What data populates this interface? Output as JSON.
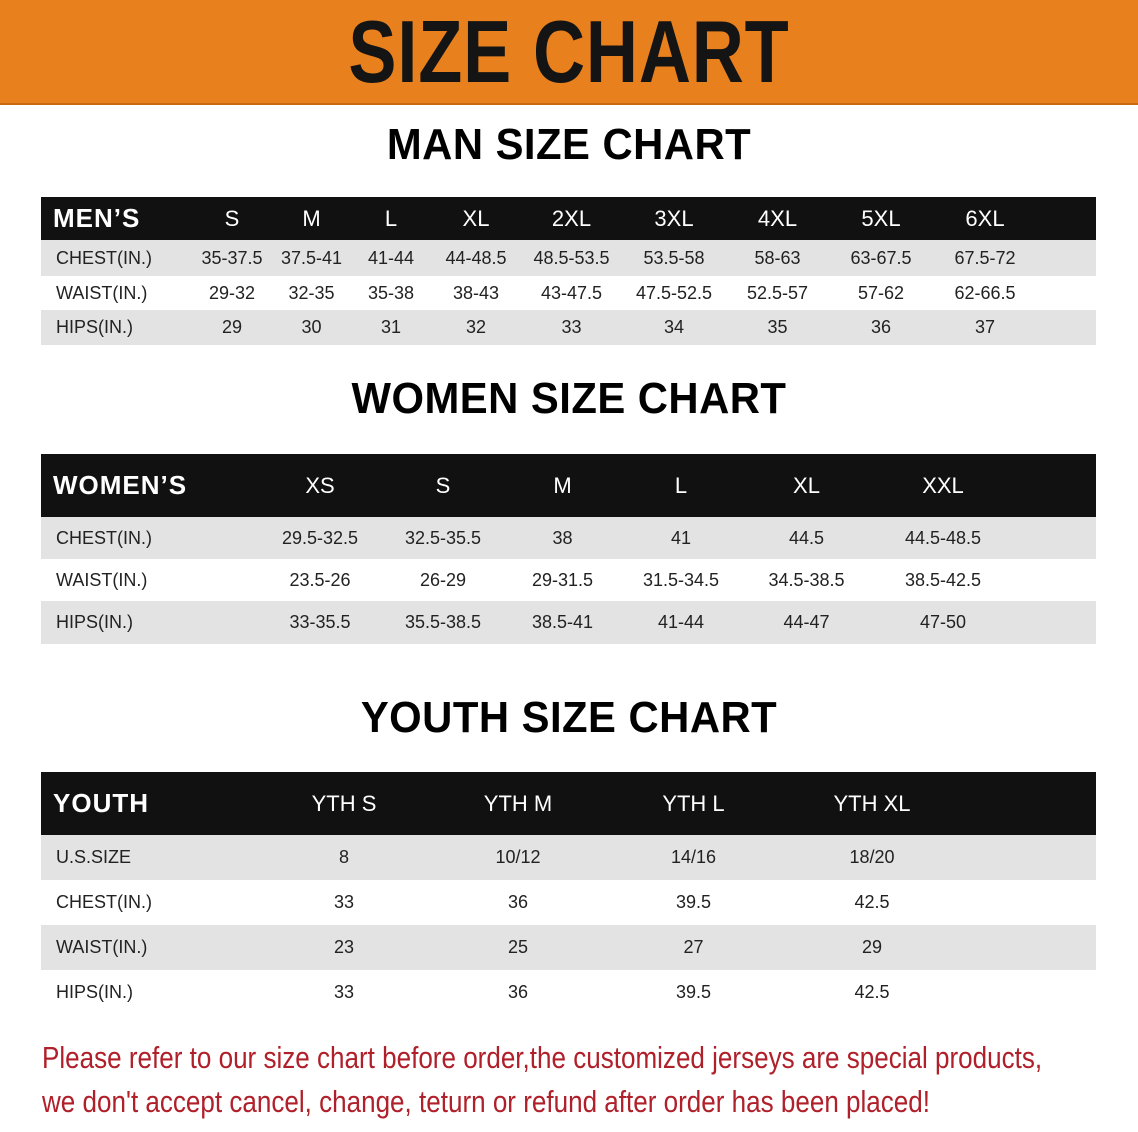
{
  "banner": {
    "title": "SIZE CHART",
    "color": "#e8801e"
  },
  "men": {
    "title": "MAN SIZE CHART",
    "header": [
      "MEN’S",
      "S",
      "M",
      "L",
      "XL",
      "2XL",
      "3XL",
      "4XL",
      "5XL",
      "6XL",
      ""
    ],
    "rows": [
      [
        "CHEST(IN.)",
        "35-37.5",
        "37.5-41",
        "41-44",
        "44-48.5",
        "48.5-53.5",
        "53.5-58",
        "58-63",
        "63-67.5",
        "67.5-72",
        ""
      ],
      [
        "WAIST(IN.)",
        "29-32",
        "32-35",
        "35-38",
        "38-43",
        "43-47.5",
        "47.5-52.5",
        "52.5-57",
        "57-62",
        "62-66.5",
        ""
      ],
      [
        "HIPS(IN.)",
        "29",
        "30",
        "31",
        "32",
        "33",
        "34",
        "35",
        "36",
        "37",
        ""
      ]
    ]
  },
  "women": {
    "title": "WOMEN SIZE CHART",
    "header": [
      "WOMEN’S",
      "XS",
      "S",
      "M",
      "L",
      "XL",
      "XXL",
      ""
    ],
    "rows": [
      [
        "CHEST(IN.)",
        "29.5-32.5",
        "32.5-35.5",
        "38",
        "41",
        "44.5",
        "44.5-48.5",
        ""
      ],
      [
        "WAIST(IN.)",
        "23.5-26",
        "26-29",
        "29-31.5",
        "31.5-34.5",
        "34.5-38.5",
        "38.5-42.5",
        ""
      ],
      [
        "HIPS(IN.)",
        "33-35.5",
        "35.5-38.5",
        "38.5-41",
        "41-44",
        "44-47",
        "47-50",
        ""
      ]
    ]
  },
  "youth": {
    "title": "YOUTH SIZE CHART",
    "header": [
      "YOUTH",
      "YTH S",
      "YTH M",
      "YTH L",
      "YTH XL",
      ""
    ],
    "rows": [
      [
        "U.S.SIZE",
        "8",
        "10/12",
        "14/16",
        "18/20",
        ""
      ],
      [
        "CHEST(IN.)",
        "33",
        "36",
        "39.5",
        "42.5",
        ""
      ],
      [
        "WAIST(IN.)",
        "23",
        "25",
        "27",
        "29",
        ""
      ],
      [
        "HIPS(IN.)",
        "33",
        "36",
        "39.5",
        "42.5",
        ""
      ]
    ]
  },
  "footer": {
    "line1": "Please refer to our size chart before order,the customized jerseys are special products,",
    "line2": "we don't accept cancel, change, teturn or refund after order has been placed!",
    "color": "#b0202a"
  }
}
